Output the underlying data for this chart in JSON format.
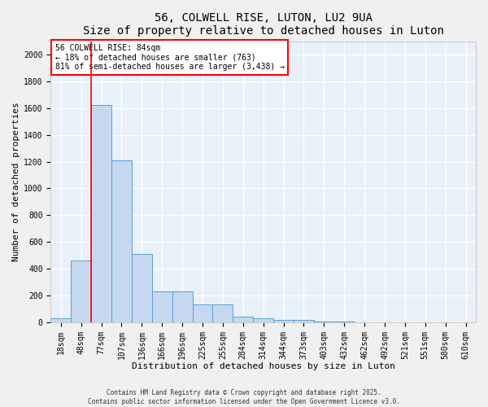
{
  "title1": "56, COLWELL RISE, LUTON, LU2 9UA",
  "title2": "Size of property relative to detached houses in Luton",
  "xlabel": "Distribution of detached houses by size in Luton",
  "ylabel": "Number of detached properties",
  "bar_color": "#c5d8ef",
  "bar_edge_color": "#5a9fd4",
  "background_color": "#e8f0fa",
  "grid_color": "#ffffff",
  "categories": [
    "18sqm",
    "48sqm",
    "77sqm",
    "107sqm",
    "136sqm",
    "166sqm",
    "196sqm",
    "225sqm",
    "255sqm",
    "284sqm",
    "314sqm",
    "344sqm",
    "373sqm",
    "403sqm",
    "432sqm",
    "462sqm",
    "492sqm",
    "521sqm",
    "551sqm",
    "580sqm",
    "610sqm"
  ],
  "values": [
    30,
    460,
    1620,
    1210,
    510,
    230,
    230,
    130,
    130,
    40,
    30,
    20,
    20,
    5,
    3,
    2,
    2,
    1,
    1,
    1,
    1
  ],
  "ylim": [
    0,
    2100
  ],
  "yticks": [
    0,
    200,
    400,
    600,
    800,
    1000,
    1200,
    1400,
    1600,
    1800,
    2000
  ],
  "red_line_x": 1.5,
  "annotation_text": "56 COLWELL RISE: 84sqm\n← 18% of detached houses are smaller (763)\n81% of semi-detached houses are larger (3,438) →",
  "footer_text": "Contains HM Land Registry data © Crown copyright and database right 2025.\nContains public sector information licensed under the Open Government Licence v3.0.",
  "title_fontsize": 10,
  "axis_label_fontsize": 8,
  "tick_fontsize": 7,
  "annot_fontsize": 7,
  "footer_fontsize": 5.5
}
